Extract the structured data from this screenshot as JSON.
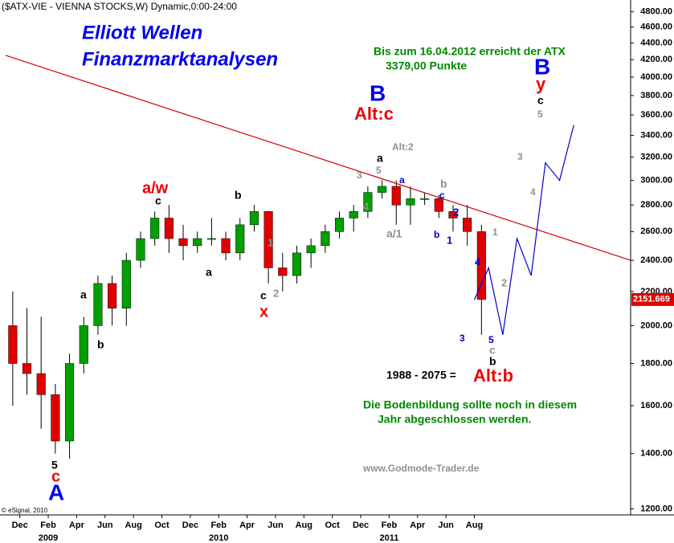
{
  "chart_data": {
    "type": "candlestick",
    "title": "($ATX-VIE - VIENNA STOCKS,W) Dynamic,0:00-24:00",
    "log_scale": true,
    "xlim": [
      "2008-11",
      "2012-07"
    ],
    "ylim": [
      1180,
      4960
    ],
    "yticks": [
      {
        "value": 1200,
        "label": "1200.00"
      },
      {
        "value": 1400,
        "label": "1400.00"
      },
      {
        "value": 1600,
        "label": "1600.00"
      },
      {
        "value": 1800,
        "label": "1800.00"
      },
      {
        "value": 2000,
        "label": "2000.00"
      },
      {
        "value": 2200,
        "label": "2200.00"
      },
      {
        "value": 2400,
        "label": "2400.00"
      },
      {
        "value": 2600,
        "label": "2600.00"
      },
      {
        "value": 2800,
        "label": "2800.00"
      },
      {
        "value": 3000,
        "label": "3000.00"
      },
      {
        "value": 3200,
        "label": "3200.00"
      },
      {
        "value": 3400,
        "label": "3400.00"
      },
      {
        "value": 3600,
        "label": "3600.00"
      },
      {
        "value": 3800,
        "label": "3800.00"
      },
      {
        "value": 4000,
        "label": "4000.00"
      },
      {
        "value": 4200,
        "label": "4200.00"
      },
      {
        "value": 4400,
        "label": "4400.00"
      },
      {
        "value": 4600,
        "label": "4600.00"
      },
      {
        "value": 4800,
        "label": "4800.00"
      }
    ],
    "xticks": [
      {
        "value": "2008-12",
        "label": "Dec"
      },
      {
        "value": "2009-02",
        "label": "Feb"
      },
      {
        "value": "2009-04",
        "label": "Apr"
      },
      {
        "value": "2009-06",
        "label": "Jun"
      },
      {
        "value": "2009-08",
        "label": "Aug"
      },
      {
        "value": "2009-10",
        "label": "Oct"
      },
      {
        "value": "2009-12",
        "label": "Dec"
      },
      {
        "value": "2010-02",
        "label": "Feb"
      },
      {
        "value": "2010-04",
        "label": "Apr"
      },
      {
        "value": "2010-06",
        "label": "Jun"
      },
      {
        "value": "2010-08",
        "label": "Aug"
      },
      {
        "value": "2010-10",
        "label": "Oct"
      },
      {
        "value": "2010-12",
        "label": "Dec"
      },
      {
        "value": "2011-02",
        "label": "Feb"
      },
      {
        "value": "2011-04",
        "label": "Apr"
      },
      {
        "value": "2011-06",
        "label": "Jun"
      },
      {
        "value": "2011-08",
        "label": "Aug"
      }
    ],
    "year_labels": [
      {
        "value": "2009-02",
        "label": "2009"
      },
      {
        "value": "2010-02",
        "label": "2010"
      },
      {
        "value": "2011-02",
        "label": "2011"
      }
    ],
    "up_color": "#00a000",
    "down_color": "#e00000",
    "candles": {
      "x": [
        "2008-11",
        "2008-12",
        "2009-01",
        "2009-02",
        "2009-03",
        "2009-04",
        "2009-05",
        "2009-06",
        "2009-07",
        "2009-08",
        "2009-09",
        "2009-10",
        "2009-11",
        "2009-12",
        "2010-01",
        "2010-02",
        "2010-03",
        "2010-04",
        "2010-05",
        "2010-06",
        "2010-07",
        "2010-08",
        "2010-09",
        "2010-10",
        "2010-11",
        "2010-12",
        "2011-01",
        "2011-02",
        "2011-03",
        "2011-04",
        "2011-05",
        "2011-06",
        "2011-07",
        "2011-08"
      ],
      "open": [
        2000,
        1800,
        1750,
        1650,
        1450,
        1800,
        2000,
        2250,
        2100,
        2400,
        2550,
        2700,
        2550,
        2500,
        2550,
        2550,
        2450,
        2650,
        2750,
        2350,
        2300,
        2450,
        2500,
        2600,
        2700,
        2750,
        2900,
        2950,
        2800,
        2850,
        2850,
        2750,
        2700,
        2600
      ],
      "high": [
        2200,
        2100,
        2050,
        1700,
        1850,
        2050,
        2300,
        2300,
        2450,
        2600,
        2750,
        2800,
        2650,
        2600,
        2700,
        2600,
        2700,
        2800,
        2750,
        2450,
        2500,
        2550,
        2650,
        2750,
        2800,
        2950,
        3000,
        3000,
        2950,
        2900,
        2880,
        2800,
        2800,
        2650
      ],
      "low": [
        1600,
        1650,
        1500,
        1400,
        1380,
        1750,
        1950,
        2000,
        2000,
        2350,
        2500,
        2450,
        2400,
        2450,
        2500,
        2400,
        2400,
        2600,
        2250,
        2200,
        2250,
        2350,
        2450,
        2550,
        2600,
        2700,
        2850,
        2650,
        2650,
        2800,
        2700,
        2600,
        2500,
        1950
      ],
      "close": [
        1800,
        1750,
        1650,
        1450,
        1800,
        2000,
        2250,
        2100,
        2400,
        2550,
        2700,
        2550,
        2500,
        2550,
        2550,
        2450,
        2650,
        2750,
        2350,
        2300,
        2450,
        2500,
        2600,
        2700,
        2750,
        2900,
        2950,
        2800,
        2850,
        2850,
        2750,
        2700,
        2600,
        2151.669
      ]
    },
    "last_price": 2151.669,
    "last_price_color": "#e00000",
    "lines": [
      {
        "color": "#d00000",
        "x": [
          "2008-11",
          "2012-07"
        ],
        "values": [
          4250,
          2400
        ]
      },
      {
        "color": "#0000cc",
        "x": [
          "2011-08",
          "2011-09",
          "2011-10",
          "2011-11",
          "2011-12",
          "2012-01",
          "2012-02",
          "2012-03"
        ],
        "values": [
          2150,
          2350,
          1950,
          2550,
          2300,
          3150,
          3000,
          3500
        ]
      }
    ],
    "annotations": [
      {
        "text": "Elliott Wellen",
        "color": "#0000ee"
      },
      {
        "text": "Finanzmarktanalysen",
        "color": "#0000ee"
      },
      {
        "text": "Bis zum 16.04.2012 erreicht der ATX",
        "color": "#008800"
      },
      {
        "text": "3379,00 Punkte",
        "color": "#008800"
      },
      {
        "text": "B",
        "color": "#0000ee"
      },
      {
        "text": "Alt:c",
        "color": "#ee0000"
      },
      {
        "text": "Alt:2",
        "color": "#909090"
      },
      {
        "text": "a/w",
        "color": "#ee0000"
      },
      {
        "text": "c",
        "color": "#000000"
      },
      {
        "text": "b",
        "color": "#000000"
      },
      {
        "text": "a",
        "color": "#000000"
      },
      {
        "text": "b",
        "color": "#000000"
      },
      {
        "text": "a",
        "color": "#000000"
      },
      {
        "text": "1",
        "color": "#909090"
      },
      {
        "text": "2",
        "color": "#909090"
      },
      {
        "text": "c",
        "color": "#000000"
      },
      {
        "text": "x",
        "color": "#ee0000"
      },
      {
        "text": "3",
        "color": "#909090"
      },
      {
        "text": "a",
        "color": "#000000"
      },
      {
        "text": "5",
        "color": "#909090"
      },
      {
        "text": "4",
        "color": "#909090"
      },
      {
        "text": "a",
        "color": "#0000cc"
      },
      {
        "text": "a/1",
        "color": "#909090"
      },
      {
        "text": "b",
        "color": "#909090"
      },
      {
        "text": "c",
        "color": "#0000cc"
      },
      {
        "text": "2",
        "color": "#0000cc"
      },
      {
        "text": "b",
        "color": "#0000cc"
      },
      {
        "text": "1",
        "color": "#0000cc"
      },
      {
        "text": "3",
        "color": "#0000cc"
      },
      {
        "text": "4",
        "color": "#0000cc"
      },
      {
        "text": "5",
        "color": "#0000cc"
      },
      {
        "text": "c",
        "color": "#909090"
      },
      {
        "text": "b",
        "color": "#000000"
      },
      {
        "text": "1",
        "color": "#909090"
      },
      {
        "text": "2",
        "color": "#909090"
      },
      {
        "text": "3",
        "color": "#909090"
      },
      {
        "text": "4",
        "color": "#909090"
      },
      {
        "text": "5",
        "color": "#909090"
      },
      {
        "text": "c",
        "color": "#000000"
      },
      {
        "text": "y",
        "color": "#ee0000"
      },
      {
        "text": "B",
        "color": "#0000ee"
      },
      {
        "text": "1988 - 2075 =",
        "color": "#000000"
      },
      {
        "text": "Alt:b",
        "color": "#ee0000"
      },
      {
        "text": "Die Bodenbildung sollte noch in diesem",
        "color": "#008800"
      },
      {
        "text": "Jahr abgeschlossen werden.",
        "color": "#008800"
      },
      {
        "text": "www.Godmode-Trader.de",
        "color": "#909090"
      },
      {
        "text": "5",
        "color": "#000000"
      },
      {
        "text": "c",
        "color": "#ee0000"
      },
      {
        "text": "A",
        "color": "#0000ee"
      },
      {
        "text": "© eSignal, 2010",
        "color": "#000000"
      }
    ]
  }
}
